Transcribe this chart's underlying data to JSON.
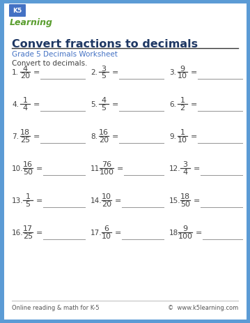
{
  "title": "Convert fractions to decimals",
  "subtitle": "Grade 5 Decimals Worksheet",
  "instruction": "Convert to decimals.",
  "footer_left": "Online reading & math for K-5",
  "footer_right": "©  www.k5learning.com",
  "bg_color": "#ffffff",
  "border_color": "#5b9bd5",
  "title_color": "#1f3864",
  "subtitle_color": "#4472c4",
  "text_color": "#404040",
  "line_color": "#999999",
  "problems": [
    {
      "num": "1.",
      "n": "4",
      "d": "20"
    },
    {
      "num": "2.",
      "n": "3",
      "d": "5"
    },
    {
      "num": "3.",
      "n": "9",
      "d": "10"
    },
    {
      "num": "4.",
      "n": "1",
      "d": "4"
    },
    {
      "num": "5.",
      "n": "4",
      "d": "5"
    },
    {
      "num": "6.",
      "n": "1",
      "d": "2"
    },
    {
      "num": "7.",
      "n": "18",
      "d": "25"
    },
    {
      "num": "8.",
      "n": "16",
      "d": "20"
    },
    {
      "num": "9.",
      "n": "1",
      "d": "10"
    },
    {
      "num": "10.",
      "n": "16",
      "d": "50"
    },
    {
      "num": "11.",
      "n": "76",
      "d": "100"
    },
    {
      "num": "12.",
      "n": "3",
      "d": "4"
    },
    {
      "num": "13.",
      "n": "1",
      "d": "5"
    },
    {
      "num": "14.",
      "n": "10",
      "d": "20"
    },
    {
      "num": "15.",
      "n": "18",
      "d": "50"
    },
    {
      "num": "16.",
      "n": "17",
      "d": "25"
    },
    {
      "num": "17.",
      "n": "6",
      "d": "10"
    },
    {
      "num": "18.",
      "n": "9",
      "d": "100"
    }
  ]
}
